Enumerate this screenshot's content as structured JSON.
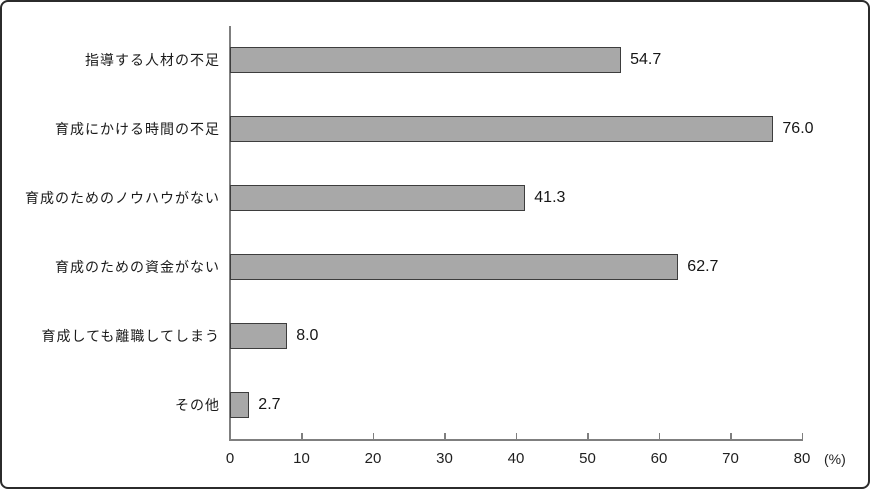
{
  "chart_data": {
    "type": "bar",
    "orientation": "horizontal",
    "title": "",
    "categories": [
      "指導する人材の不足",
      "育成にかける時間の不足",
      "育成のためのノウハウがない",
      "育成のための資金がない",
      "育成しても離職してしまう",
      "その他"
    ],
    "values": [
      54.7,
      76.0,
      41.3,
      62.7,
      8.0,
      2.7
    ],
    "value_labels": [
      "54.7",
      "76.0",
      "41.3",
      "62.7",
      "8.0",
      "2.7"
    ],
    "xlabel": "",
    "ylabel": "",
    "xlim": [
      0,
      80
    ],
    "x_ticks": [
      0,
      10,
      20,
      30,
      40,
      50,
      60,
      70,
      80
    ],
    "x_tick_labels": [
      "0",
      "10",
      "20",
      "30",
      "40",
      "50",
      "60",
      "70",
      "80"
    ],
    "x_unit_label": "(%)",
    "grid": false,
    "legend_position": "none",
    "bar_color": "#a8a8a8",
    "bar_border_color": "#3d3d3d",
    "axis_color": "#7f7f7f",
    "text_color": "#1a1a1a",
    "background_color": "#ffffff"
  }
}
